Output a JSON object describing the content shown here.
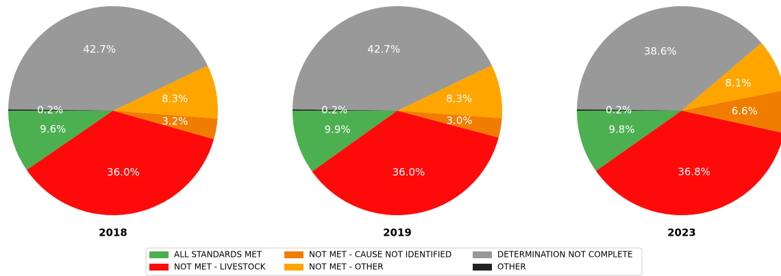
{
  "chart_data": [
    {
      "type": "pie",
      "title": "2018",
      "categories": [
        "ALL STANDARDS MET",
        "NOT MET - LIVESTOCK",
        "NOT MET - CAUSE NOT IDENTIFIED",
        "NOT MET - OTHER",
        "DETERMINATION NOT COMPLETE",
        "OTHER"
      ],
      "values": [
        9.6,
        36.0,
        3.2,
        8.3,
        42.7,
        0.2
      ],
      "value_labels": [
        "9.6%",
        "36.0%",
        "3.2%",
        "8.3%",
        "42.7%",
        "0.2%"
      ],
      "colors": [
        "#4caf50",
        "#ff0a0a",
        "#f07c00",
        "#ffa500",
        "#999999",
        "#222222"
      ]
    },
    {
      "type": "pie",
      "title": "2019",
      "categories": [
        "ALL STANDARDS MET",
        "NOT MET - LIVESTOCK",
        "NOT MET - CAUSE NOT IDENTIFIED",
        "NOT MET - OTHER",
        "DETERMINATION NOT COMPLETE",
        "OTHER"
      ],
      "values": [
        9.9,
        36.0,
        3.0,
        8.3,
        42.7,
        0.2
      ],
      "value_labels": [
        "9.9%",
        "36.0%",
        "3.0%",
        "8.3%",
        "42.7%",
        "0.2%"
      ],
      "colors": [
        "#4caf50",
        "#ff0a0a",
        "#f07c00",
        "#ffa500",
        "#999999",
        "#222222"
      ]
    },
    {
      "type": "pie",
      "title": "2023",
      "categories": [
        "ALL STANDARDS MET",
        "NOT MET - LIVESTOCK",
        "NOT MET - CAUSE NOT IDENTIFIED",
        "NOT MET - OTHER",
        "DETERMINATION NOT COMPLETE",
        "OTHER"
      ],
      "values": [
        9.8,
        36.8,
        6.6,
        8.1,
        38.6,
        0.2
      ],
      "value_labels": [
        "9.8%",
        "36.8%",
        "6.6%",
        "8.1%",
        "38.6%",
        "0.2%"
      ],
      "colors": [
        "#4caf50",
        "#ff0a0a",
        "#f07c00",
        "#ffa500",
        "#999999",
        "#222222"
      ]
    }
  ]
}
